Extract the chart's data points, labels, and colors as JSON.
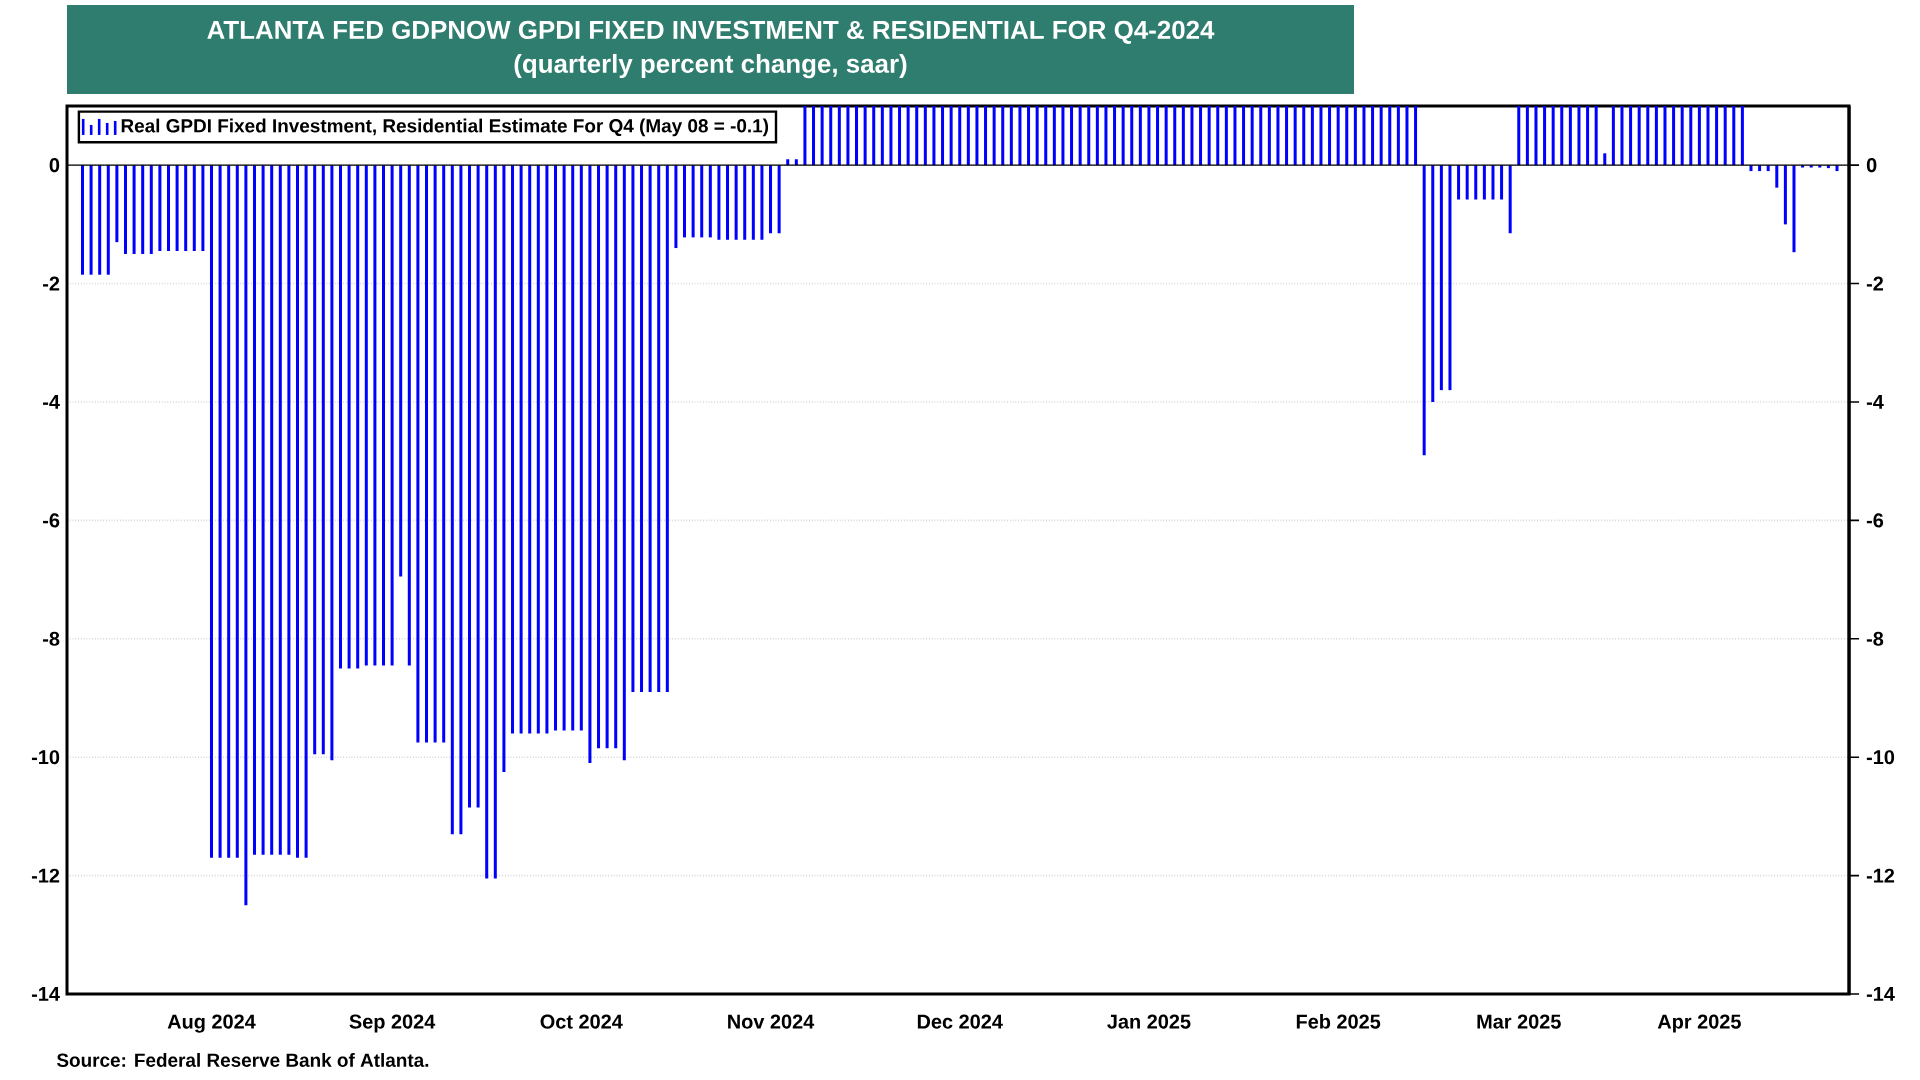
{
  "chart_data": {
    "type": "bar",
    "title": "ATLANTA FED GDPNOW GPDI FIXED INVESTMENT & RESIDENTIAL FOR Q4-2024",
    "subtitle": "(quarterly percent change, saar)",
    "categories": [
      null,
      null,
      null,
      null,
      null,
      null,
      null,
      null,
      null,
      null,
      null,
      null,
      null,
      null,
      null,
      "Aug 2024",
      null,
      null,
      null,
      null,
      null,
      null,
      null,
      null,
      null,
      null,
      null,
      null,
      null,
      null,
      null,
      null,
      null,
      null,
      null,
      null,
      "Sep 2024",
      null,
      null,
      null,
      null,
      null,
      null,
      null,
      null,
      null,
      null,
      null,
      null,
      null,
      null,
      null,
      null,
      null,
      null,
      null,
      null,
      null,
      "Oct 2024",
      null,
      null,
      null,
      null,
      null,
      null,
      null,
      null,
      null,
      null,
      null,
      null,
      null,
      null,
      null,
      null,
      null,
      null,
      null,
      null,
      null,
      "Nov 2024",
      null,
      null,
      null,
      null,
      null,
      null,
      null,
      null,
      null,
      null,
      null,
      null,
      null,
      null,
      null,
      null,
      null,
      null,
      null,
      null,
      null,
      "Dec 2024",
      null,
      null,
      null,
      null,
      null,
      null,
      null,
      null,
      null,
      null,
      null,
      null,
      null,
      null,
      null,
      null,
      null,
      null,
      null,
      null,
      null,
      "Jan 2025",
      null,
      null,
      null,
      null,
      null,
      null,
      null,
      null,
      null,
      null,
      null,
      null,
      null,
      null,
      null,
      null,
      null,
      null,
      null,
      null,
      null,
      "Feb 2025",
      null,
      null,
      null,
      null,
      null,
      null,
      null,
      null,
      null,
      null,
      null,
      null,
      null,
      null,
      null,
      null,
      null,
      null,
      null,
      null,
      "Mar 2025",
      null,
      null,
      null,
      null,
      null,
      null,
      null,
      null,
      null,
      null,
      null,
      null,
      null,
      null,
      null,
      null,
      null,
      null,
      null,
      null,
      "Apr 2025",
      null,
      null,
      null,
      null,
      null,
      null,
      null,
      null,
      null,
      null,
      null,
      null,
      null,
      null,
      null,
      null
    ],
    "series": [
      {
        "name": "Real GPDI Fixed Investment, Residential Estimate For Q4 (May 08 = -0.1)",
        "color": "#0000ff",
        "values": [
          -1.85,
          -1.85,
          -1.85,
          -1.85,
          -1.3,
          -1.5,
          -1.5,
          -1.5,
          -1.5,
          -1.45,
          -1.45,
          -1.45,
          -1.45,
          -1.45,
          -1.45,
          -11.7,
          -11.7,
          -11.7,
          -11.7,
          -12.5,
          -11.65,
          -11.65,
          -11.65,
          -11.65,
          -11.65,
          -11.7,
          -11.7,
          -9.95,
          -9.95,
          -10.05,
          -8.5,
          -8.5,
          -8.5,
          -8.45,
          -8.45,
          -8.45,
          -8.45,
          -6.95,
          -8.45,
          -9.75,
          -9.75,
          -9.75,
          -9.75,
          -11.3,
          -11.3,
          -10.85,
          -10.85,
          -12.05,
          -12.05,
          -10.25,
          -9.6,
          -9.6,
          -9.6,
          -9.6,
          -9.6,
          -9.55,
          -9.55,
          -9.55,
          -9.55,
          -10.1,
          -9.85,
          -9.85,
          -9.85,
          -10.05,
          -8.9,
          -8.9,
          -8.9,
          -8.9,
          -8.9,
          -1.4,
          -1.22,
          -1.22,
          -1.22,
          -1.22,
          -1.26,
          -1.26,
          -1.26,
          -1.26,
          -1.26,
          -1.26,
          -1.15,
          -1.15,
          0.1,
          0.1,
          1,
          1,
          1,
          1,
          1,
          1,
          1,
          1,
          1,
          1,
          1,
          1,
          1,
          1,
          1,
          1,
          1,
          1,
          1,
          1,
          1,
          1,
          1,
          1,
          1,
          1,
          1,
          1,
          1,
          1,
          1,
          1,
          1,
          1,
          1,
          1,
          1,
          1,
          1,
          1,
          1,
          1,
          1,
          1,
          1,
          1,
          1,
          1,
          1,
          1,
          1,
          1,
          1,
          1,
          1,
          1,
          1,
          1,
          1,
          1,
          1,
          1,
          1,
          1,
          1,
          1,
          1,
          1,
          1,
          1,
          1,
          1,
          -4.9,
          -4.0,
          -3.8,
          -3.8,
          -0.58,
          -0.58,
          -0.58,
          -0.58,
          -0.58,
          -0.58,
          -1.15,
          1,
          1,
          1,
          1,
          1,
          1,
          1,
          1,
          1,
          1,
          0.2,
          1,
          1,
          1,
          1,
          1,
          1,
          1,
          1,
          1,
          1,
          1,
          1,
          1,
          1,
          1,
          1,
          -0.1,
          -0.1,
          -0.1,
          -0.38,
          -1.0,
          -1.47,
          -0.04,
          -0.04,
          -0.04,
          -0.05,
          -0.1
        ]
      }
    ],
    "ylim": [
      -14,
      1
    ],
    "yticks": [
      0,
      -2,
      -4,
      -6,
      -8,
      -10,
      -12,
      -14
    ],
    "y2lim": [
      -14,
      1
    ],
    "y2ticks": [
      0,
      -2,
      -4,
      -6,
      -8,
      -10,
      -12,
      -14
    ],
    "grid": "y",
    "legend": "top left",
    "ref_lines": [
      {
        "axis": "y",
        "value": 0,
        "color": "#000000"
      }
    ],
    "annotations": [
      "Source: Federal Reserve Bank of Atlanta."
    ]
  }
}
